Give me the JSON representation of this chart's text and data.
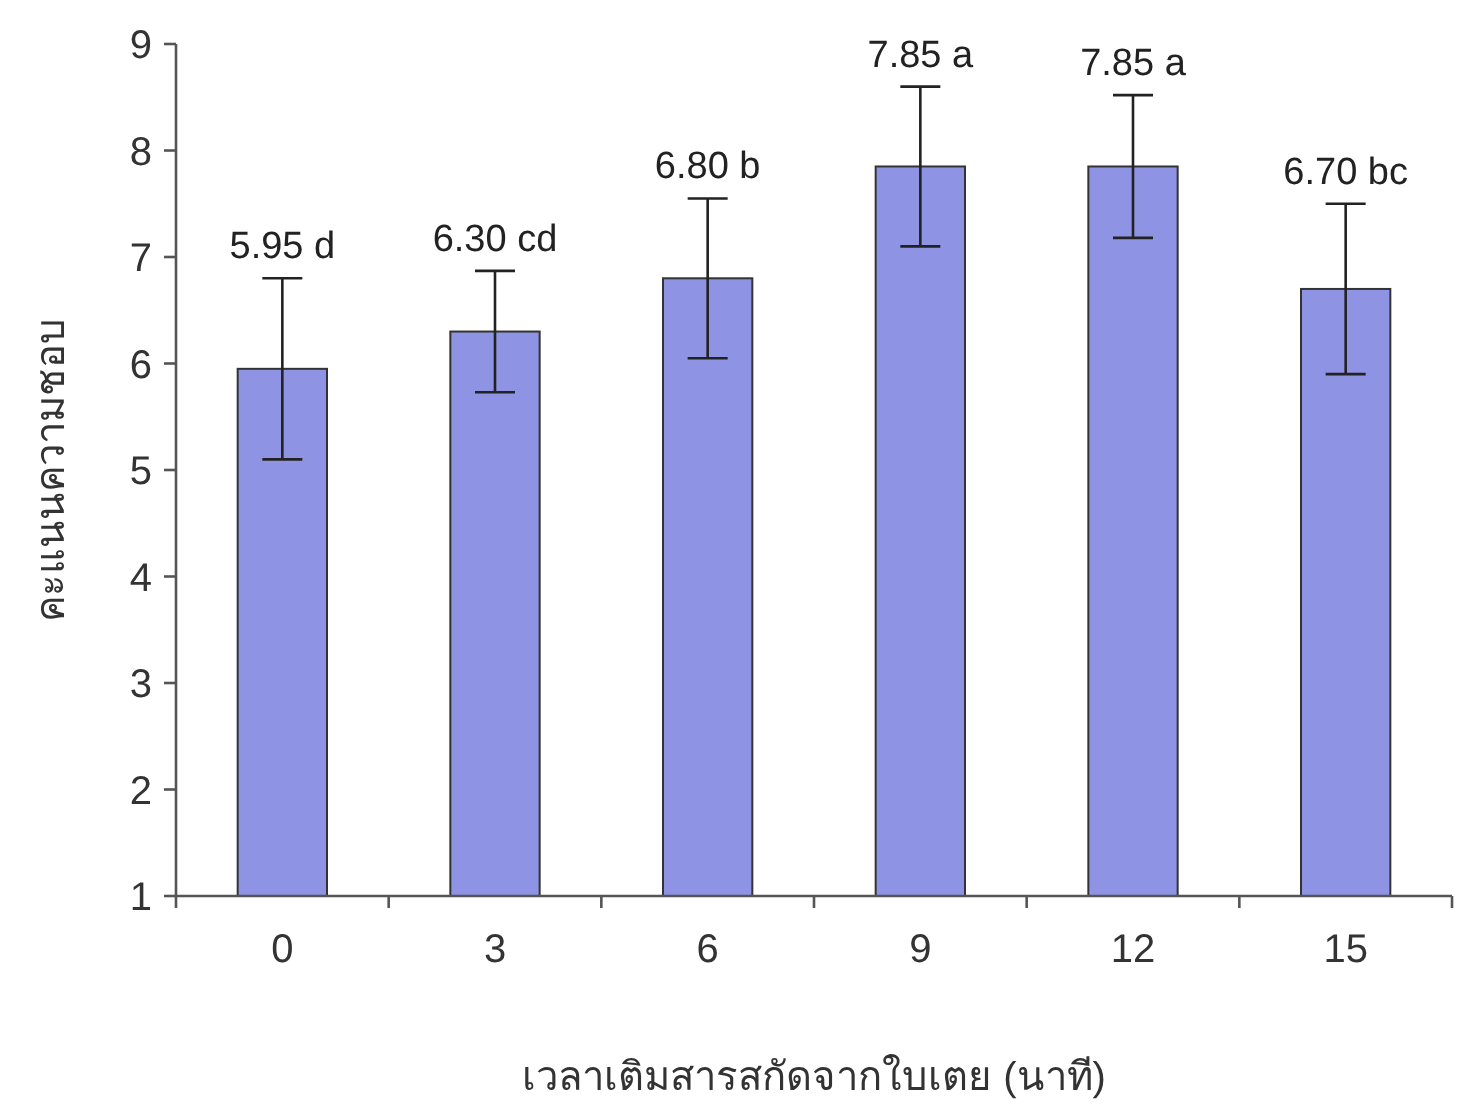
{
  "chart_data": {
    "type": "bar",
    "xlabel": "เวลาเติมสารสกัดจากใบเตย (นาที)",
    "ylabel": "คะแนนความชอบ",
    "categories": [
      "0",
      "3",
      "6",
      "9",
      "12",
      "15"
    ],
    "values": [
      5.95,
      6.3,
      6.8,
      7.85,
      7.85,
      6.7
    ],
    "errors": [
      0.85,
      0.57,
      0.75,
      0.75,
      0.67,
      0.8
    ],
    "value_labels": [
      "5.95 d",
      "6.30 cd",
      "6.80 b",
      "7.85 a",
      "7.85 a",
      "6.70 bc"
    ],
    "color": "#8f93e3",
    "ylim": [
      1,
      9
    ],
    "yticks": [
      1,
      2,
      3,
      4,
      5,
      6,
      7,
      8,
      9
    ],
    "grid": false
  }
}
